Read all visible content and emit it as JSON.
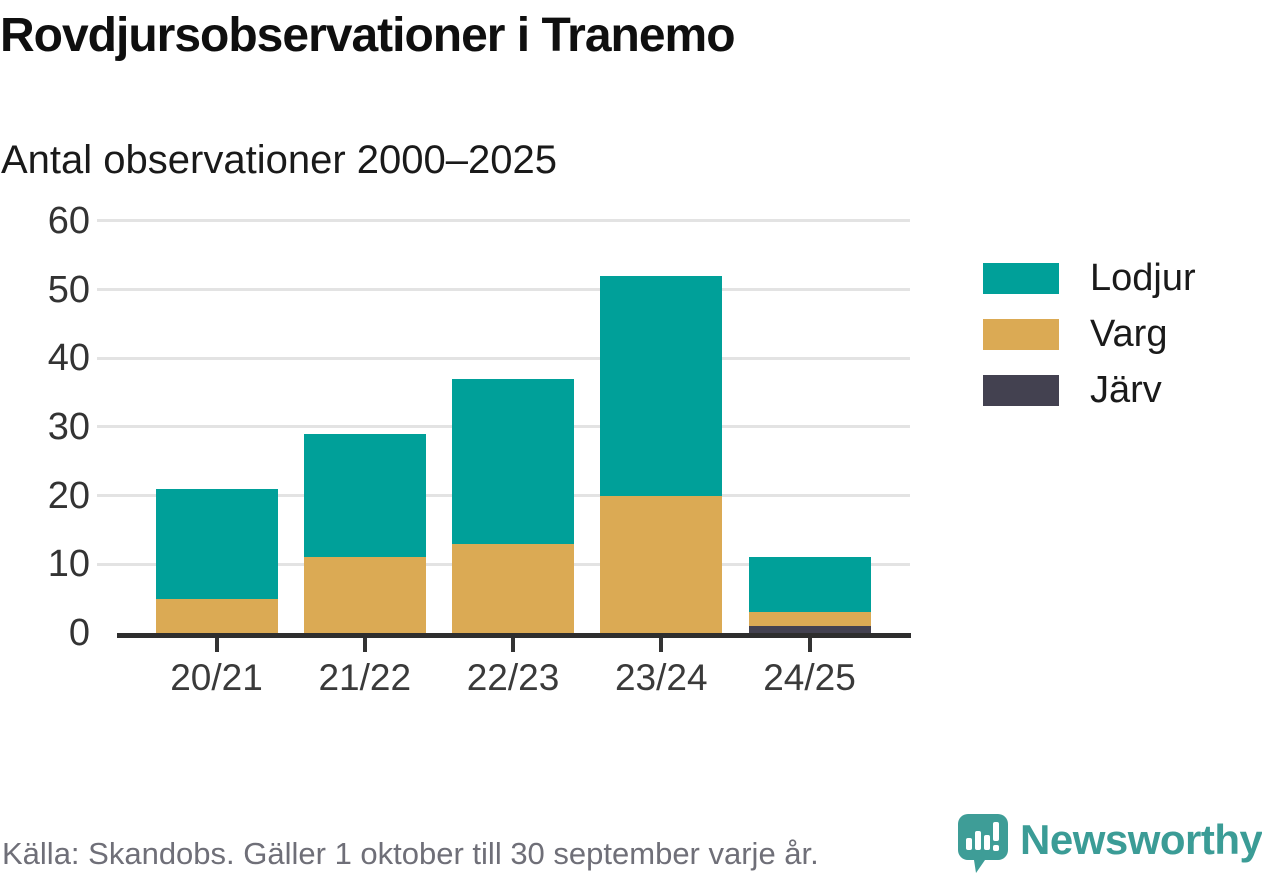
{
  "header": {
    "title": "Rovdjursobservationer i Tranemo",
    "subtitle": "Antal observationer 2000–2025"
  },
  "chart_data": {
    "type": "bar",
    "stacked": true,
    "title": "Rovdjursobservationer i Tranemo",
    "subtitle": "Antal observationer 2000–2025",
    "categories": [
      "20/21",
      "21/22",
      "22/23",
      "23/24",
      "24/25"
    ],
    "series": [
      {
        "name": "Lodjur",
        "color": "#00A099",
        "values": [
          16,
          18,
          24,
          32,
          8
        ]
      },
      {
        "name": "Varg",
        "color": "#DBAA54",
        "values": [
          5,
          11,
          13,
          20,
          2
        ]
      },
      {
        "name": "Järv",
        "color": "#434150",
        "values": [
          0,
          0,
          0,
          0,
          1
        ]
      }
    ],
    "stack_order_bottom_to_top": [
      "Järv",
      "Varg",
      "Lodjur"
    ],
    "totals": [
      21,
      29,
      37,
      52,
      11
    ],
    "xlabel": "",
    "ylabel": "",
    "ylim": [
      0,
      60
    ],
    "yticks": [
      0,
      10,
      20,
      30,
      40,
      50,
      60
    ],
    "grid": true,
    "legend_position": "right"
  },
  "footer": {
    "source": "Källa: Skandobs. Gäller 1 oktober till 30 september varje år.",
    "brand": "Newsworthy"
  },
  "colors": {
    "lodjur": "#00A099",
    "varg": "#DBAA54",
    "jarv": "#434150",
    "gridline": "#E3E3E3",
    "axis": "#2E2E2E",
    "axis_label": "#333333",
    "footer_text": "#6F6F78",
    "brand_teal": "#3B9C96"
  },
  "icons": {
    "brand_logo": "newsworthy-speech-bubble-bar-chart-icon"
  }
}
